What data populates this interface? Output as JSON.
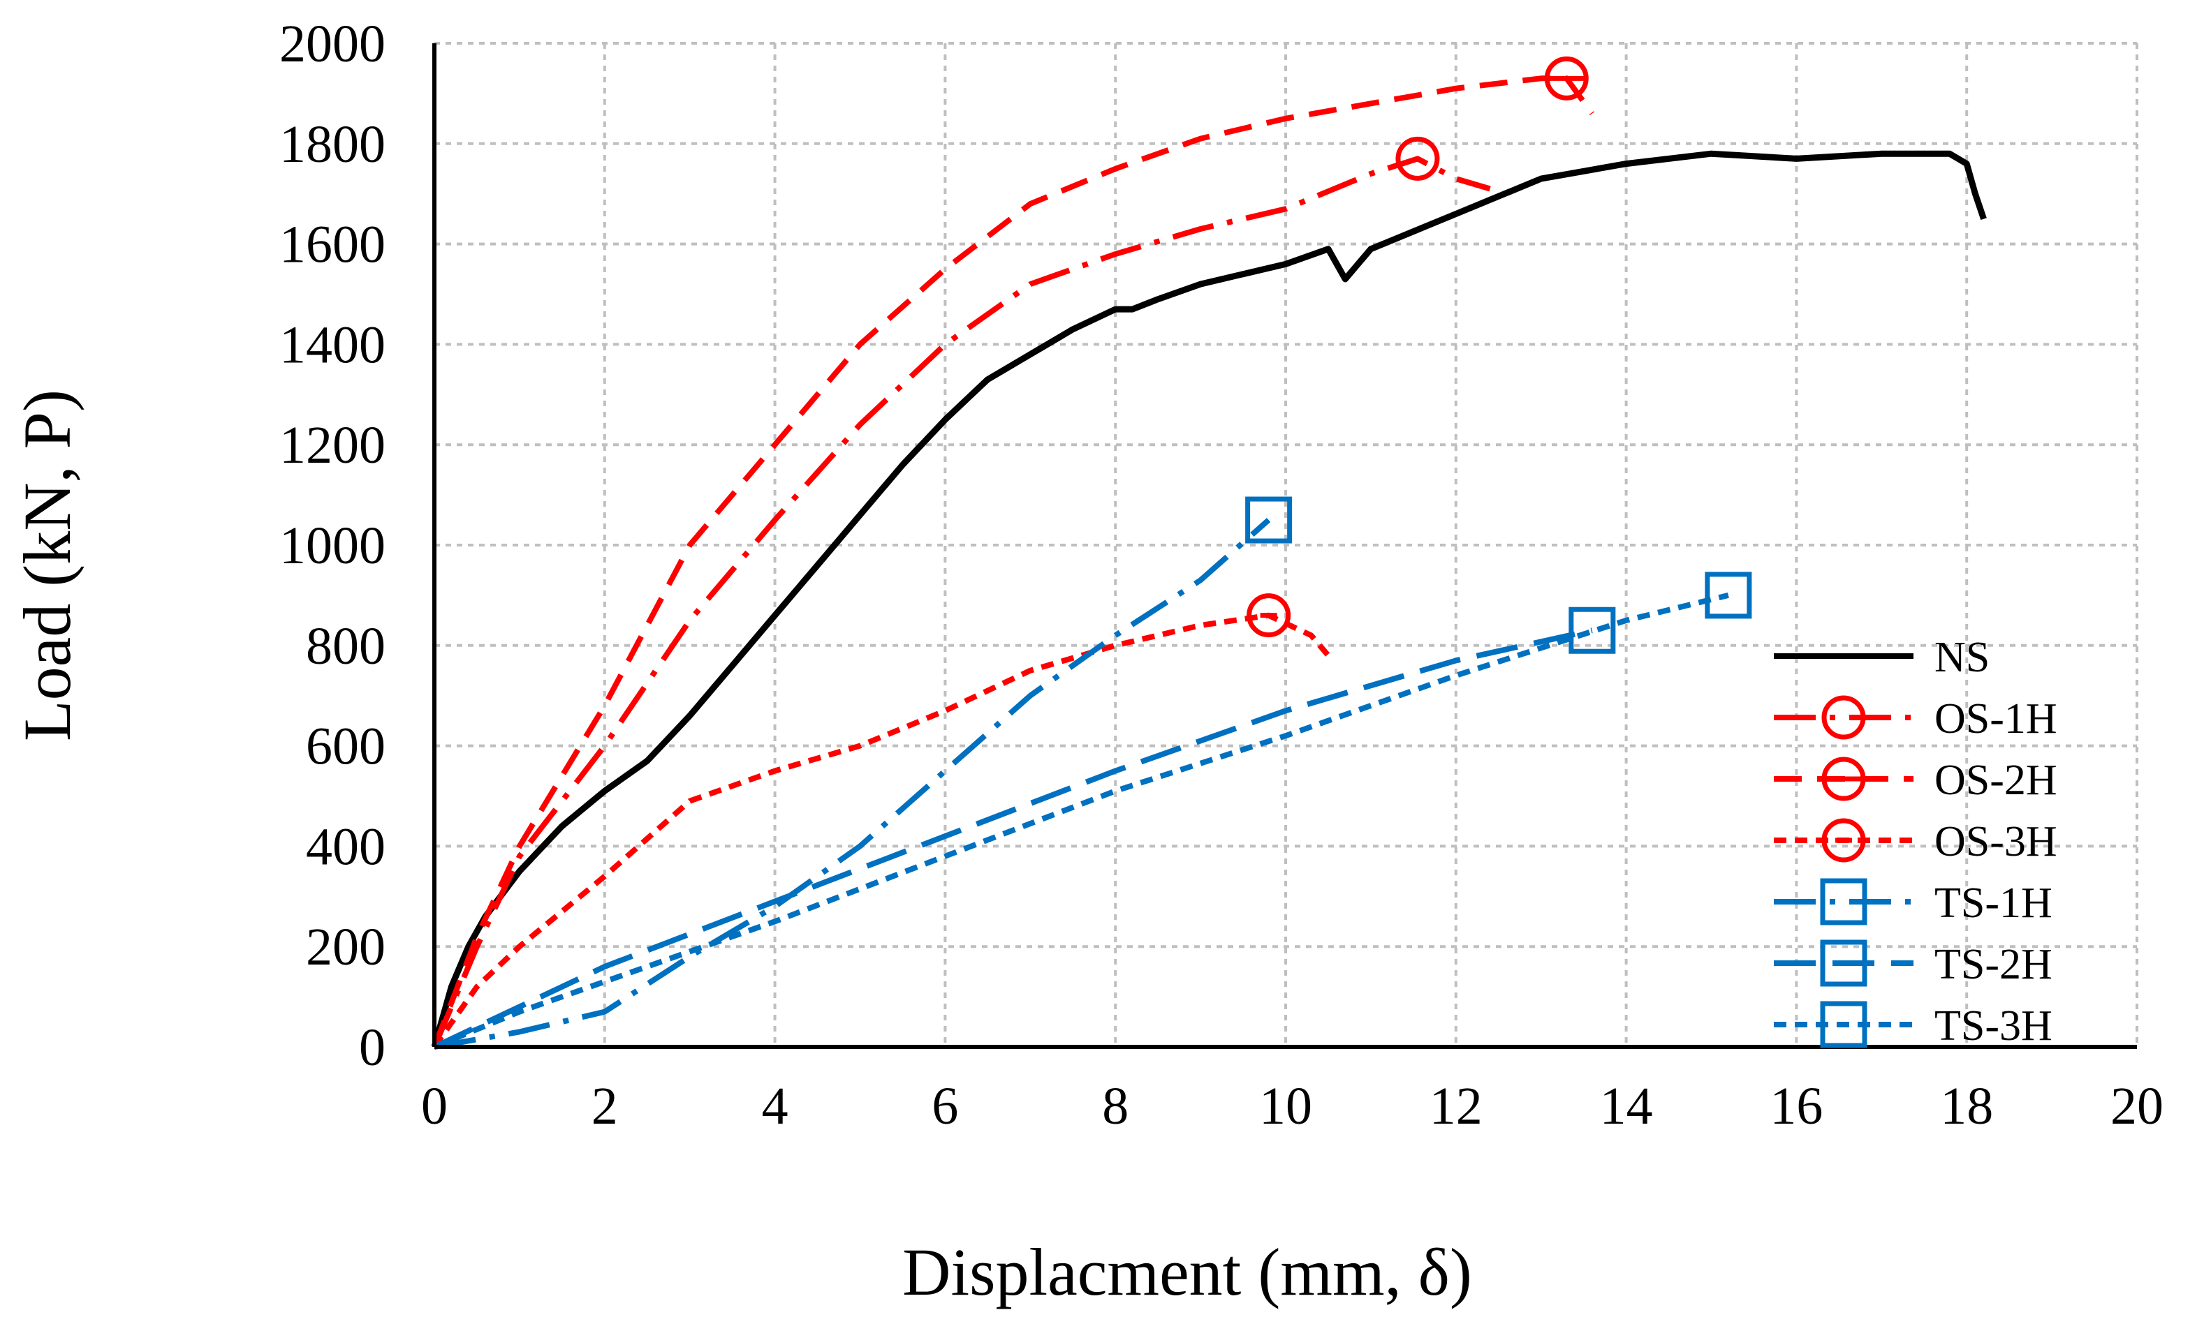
{
  "chart_data": {
    "type": "line",
    "title": "",
    "xlabel": "Displacment (mm, δ)",
    "ylabel": "Load (kN, P)",
    "xlim": [
      0,
      20
    ],
    "ylim": [
      0,
      2000
    ],
    "xticks": [
      "0",
      "2",
      "4",
      "6",
      "8",
      "10",
      "12",
      "14",
      "16",
      "18",
      "20"
    ],
    "yticks": [
      "0",
      "200",
      "400",
      "600",
      "800",
      "1000",
      "1200",
      "1400",
      "1600",
      "1800",
      "2000"
    ],
    "grid": true,
    "legend_position": "bottom-right",
    "series": [
      {
        "name": "NS",
        "color": "#000000",
        "dash": "solid",
        "marker": "none",
        "x": [
          0,
          0.2,
          0.4,
          0.6,
          1.0,
          1.5,
          2.0,
          2.5,
          3.0,
          3.5,
          4.0,
          4.5,
          5.0,
          5.5,
          6.0,
          6.5,
          7.0,
          7.5,
          8.0,
          8.2,
          8.5,
          9.0,
          9.5,
          10.0,
          10.5,
          10.7,
          11.0,
          12.0,
          13.0,
          14.0,
          15.0,
          16.0,
          17.0,
          17.8,
          18.0,
          18.1,
          18.2
        ],
        "y": [
          0,
          120,
          200,
          260,
          350,
          440,
          510,
          570,
          660,
          760,
          860,
          960,
          1060,
          1160,
          1250,
          1330,
          1380,
          1430,
          1470,
          1470,
          1490,
          1520,
          1540,
          1560,
          1590,
          1530,
          1590,
          1660,
          1730,
          1760,
          1780,
          1770,
          1780,
          1780,
          1760,
          1700,
          1650
        ]
      },
      {
        "name": "OS-1H",
        "color": "#ff0000",
        "dash": "longdashdot",
        "marker": "circle",
        "x": [
          0,
          0.5,
          1.0,
          2.0,
          3.0,
          4.0,
          5.0,
          6.0,
          7.0,
          8.0,
          9.0,
          10.0,
          11.0,
          11.55,
          12.0,
          12.4
        ],
        "y": [
          0,
          200,
          380,
          600,
          850,
          1050,
          1240,
          1400,
          1520,
          1580,
          1630,
          1670,
          1740,
          1770,
          1730,
          1710
        ],
        "marker_points": [
          [
            11.55,
            1770
          ]
        ]
      },
      {
        "name": "OS-2H",
        "color": "#ff0000",
        "dash": "dash",
        "marker": "circle-bar",
        "x": [
          0,
          0.5,
          1.0,
          2.0,
          3.0,
          4.0,
          5.0,
          6.0,
          7.0,
          8.0,
          9.0,
          10.0,
          11.0,
          12.0,
          13.0,
          13.3,
          13.6
        ],
        "y": [
          0,
          220,
          400,
          680,
          1000,
          1200,
          1400,
          1550,
          1680,
          1750,
          1810,
          1850,
          1880,
          1910,
          1930,
          1930,
          1860
        ],
        "marker_points": [
          [
            13.3,
            1930
          ]
        ]
      },
      {
        "name": "OS-3H",
        "color": "#ff0000",
        "dash": "shortdash",
        "marker": "circle-dot",
        "x": [
          0,
          0.5,
          1.0,
          2.0,
          3.0,
          4.0,
          5.0,
          6.0,
          7.0,
          8.0,
          9.0,
          9.8,
          10.3,
          10.5
        ],
        "y": [
          0,
          120,
          200,
          340,
          490,
          550,
          600,
          670,
          750,
          800,
          840,
          860,
          820,
          780
        ],
        "marker_points": [
          [
            9.8,
            860
          ]
        ]
      },
      {
        "name": "TS-1H",
        "color": "#0070c0",
        "dash": "longdashdot",
        "marker": "square",
        "x": [
          0,
          1.0,
          2.0,
          3.0,
          4.0,
          5.0,
          6.0,
          7.0,
          8.0,
          9.0,
          9.8
        ],
        "y": [
          0,
          30,
          70,
          180,
          280,
          400,
          550,
          700,
          820,
          930,
          1050
        ],
        "marker_points": [
          [
            9.8,
            1050
          ]
        ]
      },
      {
        "name": "TS-2H",
        "color": "#0070c0",
        "dash": "longdash",
        "marker": "square",
        "x": [
          0,
          1.0,
          2.0,
          4.0,
          6.0,
          8.0,
          10.0,
          12.0,
          13.6
        ],
        "y": [
          0,
          80,
          160,
          290,
          420,
          550,
          670,
          770,
          830
        ],
        "marker_points": [
          [
            13.6,
            830
          ]
        ]
      },
      {
        "name": "TS-3H",
        "color": "#0070c0",
        "dash": "shortdash",
        "marker": "square",
        "x": [
          0,
          1.0,
          2.0,
          4.0,
          6.0,
          8.0,
          10.0,
          12.0,
          14.0,
          15.2
        ],
        "y": [
          0,
          70,
          130,
          250,
          380,
          510,
          620,
          740,
          850,
          900
        ],
        "marker_points": [
          [
            15.2,
            900
          ]
        ]
      }
    ]
  }
}
